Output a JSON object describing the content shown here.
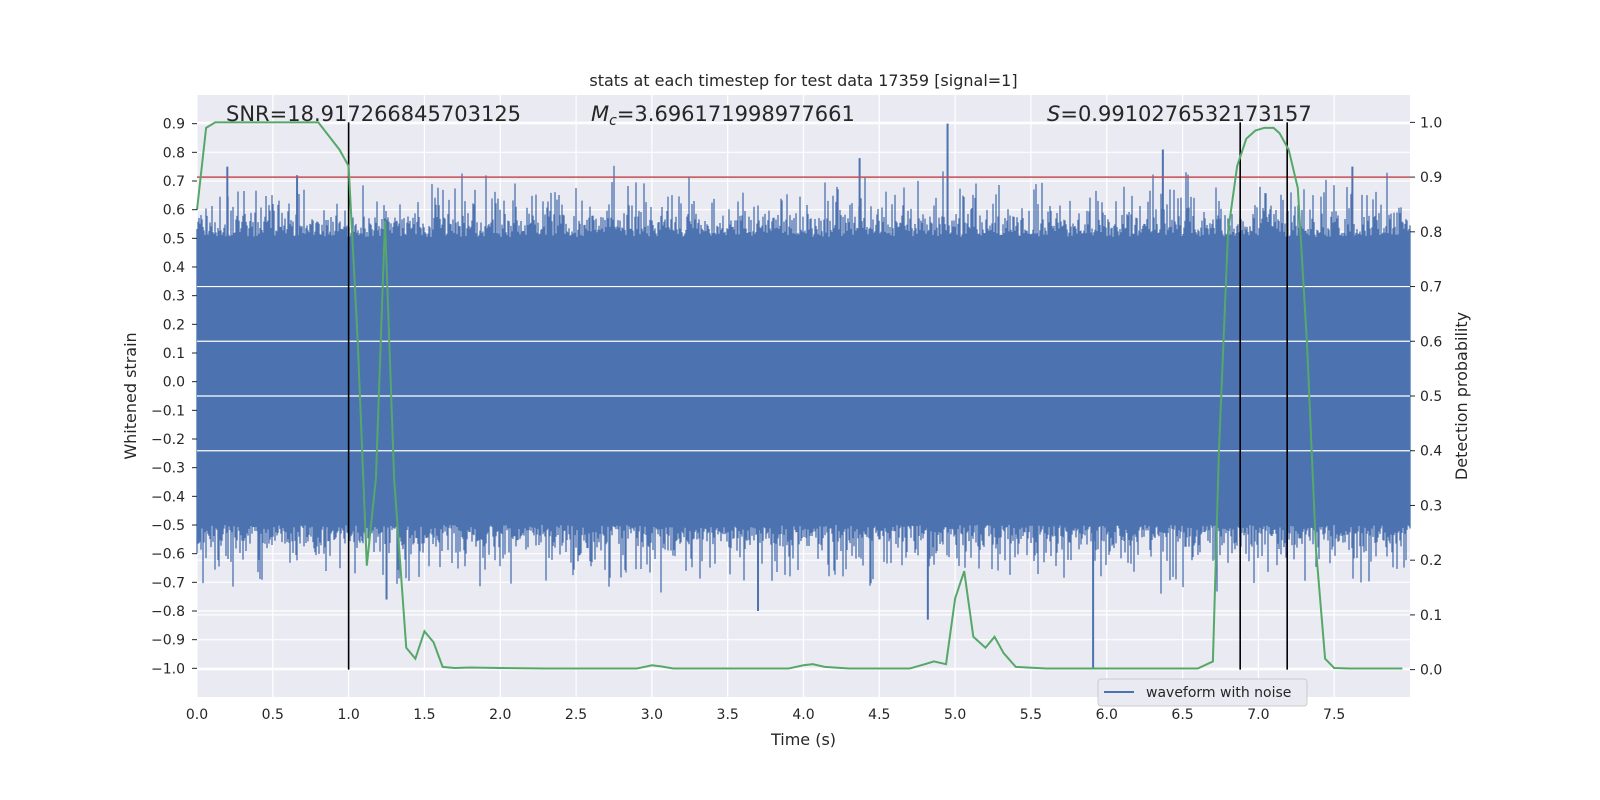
{
  "chart_data": {
    "type": "line",
    "title": "stats at each timestep for test data 17359 [signal=1]",
    "xlabel": "Time (s)",
    "ylabel": "Whitened strain",
    "y2label": "Detection probability",
    "xlim": [
      0.0,
      8.0
    ],
    "ylim": [
      -1.1,
      1.0
    ],
    "y2lim": [
      -0.05,
      1.05
    ],
    "xticks": [
      "0.0",
      "0.5",
      "1.0",
      "1.5",
      "2.0",
      "2.5",
      "3.0",
      "3.5",
      "4.0",
      "4.5",
      "5.0",
      "5.5",
      "6.0",
      "6.5",
      "7.0",
      "7.5"
    ],
    "yticks": [
      "0.9",
      "0.8",
      "0.7",
      "0.6",
      "0.5",
      "0.4",
      "0.3",
      "0.2",
      "0.1",
      "0.0",
      "−0.1",
      "−0.2",
      "−0.3",
      "−0.4",
      "−0.5",
      "−0.6",
      "−0.7",
      "−0.8",
      "−0.9",
      "−1.0"
    ],
    "y2ticks": [
      "1.0",
      "0.9",
      "0.8",
      "0.7",
      "0.6",
      "0.5",
      "0.4",
      "0.3",
      "0.2",
      "0.1",
      "0.0"
    ],
    "grid": true,
    "legend_position": "lower-right",
    "annotations": {
      "snr": "SNR=18.917266845703125",
      "mc_symbol": "M",
      "mc_sub": "c",
      "mc_value": "=3.696171998977661",
      "s_symbol": "S",
      "s_value": "=0.9910276532173157"
    },
    "threshold": {
      "axis": "y2",
      "value": 0.9,
      "color": "#c44e52"
    },
    "vlines": [
      1.0,
      6.88,
      7.19
    ],
    "series": [
      {
        "name": "waveform with noise",
        "axis": "y",
        "color": "#4c72b0",
        "style": "dense-noise",
        "amplitude_mean": 0.5,
        "notable_peaks": [
          {
            "x": 0.2,
            "y": 0.75
          },
          {
            "x": 0.66,
            "y": 0.72
          },
          {
            "x": 1.26,
            "y": 0.54
          },
          {
            "x": 4.37,
            "y": 0.78
          },
          {
            "x": 4.95,
            "y": 0.9
          },
          {
            "x": 6.37,
            "y": 0.81
          },
          {
            "x": 7.62,
            "y": 0.75
          },
          {
            "x": 1.25,
            "y": -0.76
          },
          {
            "x": 3.7,
            "y": -0.8
          },
          {
            "x": 4.82,
            "y": -0.83
          },
          {
            "x": 5.91,
            "y": -1.0
          }
        ]
      },
      {
        "name": "",
        "axis": "y2",
        "color": "#55a868",
        "x": [
          0.0,
          0.06,
          0.12,
          0.2,
          0.3,
          0.4,
          0.5,
          0.6,
          0.7,
          0.8,
          0.94,
          1.0,
          1.06,
          1.12,
          1.18,
          1.24,
          1.3,
          1.38,
          1.44,
          1.5,
          1.56,
          1.62,
          1.7,
          1.8,
          2.0,
          2.3,
          2.6,
          2.9,
          3.0,
          3.06,
          3.14,
          3.3,
          3.5,
          3.7,
          3.9,
          4.0,
          4.06,
          4.14,
          4.3,
          4.5,
          4.7,
          4.8,
          4.86,
          4.94,
          5.0,
          5.06,
          5.12,
          5.2,
          5.26,
          5.32,
          5.4,
          5.6,
          5.8,
          6.0,
          6.4,
          6.6,
          6.7,
          6.74,
          6.8,
          6.86,
          6.92,
          6.98,
          7.04,
          7.1,
          7.14,
          7.2,
          7.26,
          7.32,
          7.38,
          7.44,
          7.5,
          7.6,
          7.8,
          7.95
        ],
        "y": [
          0.84,
          0.99,
          1.0,
          1.0,
          1.0,
          1.0,
          1.0,
          1.0,
          1.0,
          1.0,
          0.95,
          0.92,
          0.6,
          0.19,
          0.35,
          0.82,
          0.35,
          0.04,
          0.02,
          0.07,
          0.05,
          0.005,
          0.003,
          0.004,
          0.003,
          0.002,
          0.002,
          0.002,
          0.008,
          0.006,
          0.002,
          0.002,
          0.002,
          0.002,
          0.002,
          0.008,
          0.01,
          0.005,
          0.002,
          0.002,
          0.002,
          0.01,
          0.015,
          0.01,
          0.13,
          0.18,
          0.06,
          0.04,
          0.06,
          0.03,
          0.005,
          0.002,
          0.002,
          0.002,
          0.002,
          0.002,
          0.015,
          0.4,
          0.8,
          0.92,
          0.97,
          0.985,
          0.99,
          0.99,
          0.98,
          0.95,
          0.88,
          0.6,
          0.22,
          0.02,
          0.003,
          0.002,
          0.002,
          0.002
        ]
      }
    ]
  }
}
